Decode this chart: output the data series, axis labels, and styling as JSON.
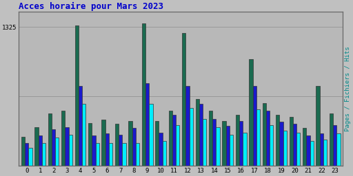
{
  "title": "Acces horaire pour Mars 2023",
  "title_color": "#0000cc",
  "title_fontsize": 9,
  "ylabel": "Pages / Fichiers / Hits",
  "ylabel_color": "#008888",
  "background_color": "#c0c0c0",
  "plot_bg_color": "#b8b8b8",
  "border_color": "#555555",
  "ytick_label": "1325",
  "ylim": [
    0,
    1470
  ],
  "yticks": [
    1325
  ],
  "hours": [
    0,
    1,
    2,
    3,
    4,
    5,
    6,
    7,
    8,
    9,
    10,
    11,
    12,
    13,
    14,
    15,
    16,
    17,
    18,
    19,
    20,
    21,
    22,
    23
  ],
  "pages": [
    280,
    370,
    500,
    530,
    1340,
    410,
    440,
    400,
    430,
    1360,
    430,
    530,
    1270,
    640,
    530,
    430,
    490,
    1020,
    600,
    490,
    470,
    360,
    760,
    500
  ],
  "fichiers": [
    220,
    290,
    350,
    370,
    760,
    290,
    310,
    300,
    360,
    790,
    320,
    490,
    760,
    590,
    450,
    380,
    430,
    760,
    530,
    420,
    400,
    290,
    310,
    390
  ],
  "hits": [
    170,
    220,
    270,
    300,
    590,
    220,
    220,
    220,
    220,
    590,
    240,
    390,
    550,
    450,
    370,
    300,
    320,
    540,
    390,
    340,
    320,
    240,
    250,
    310
  ],
  "color_pages": "#1a6b50",
  "color_fichiers": "#1a1acc",
  "color_hits": "#00eeff",
  "bar_width": 0.27,
  "grid_color": "#999999",
  "font_name": "monospace"
}
